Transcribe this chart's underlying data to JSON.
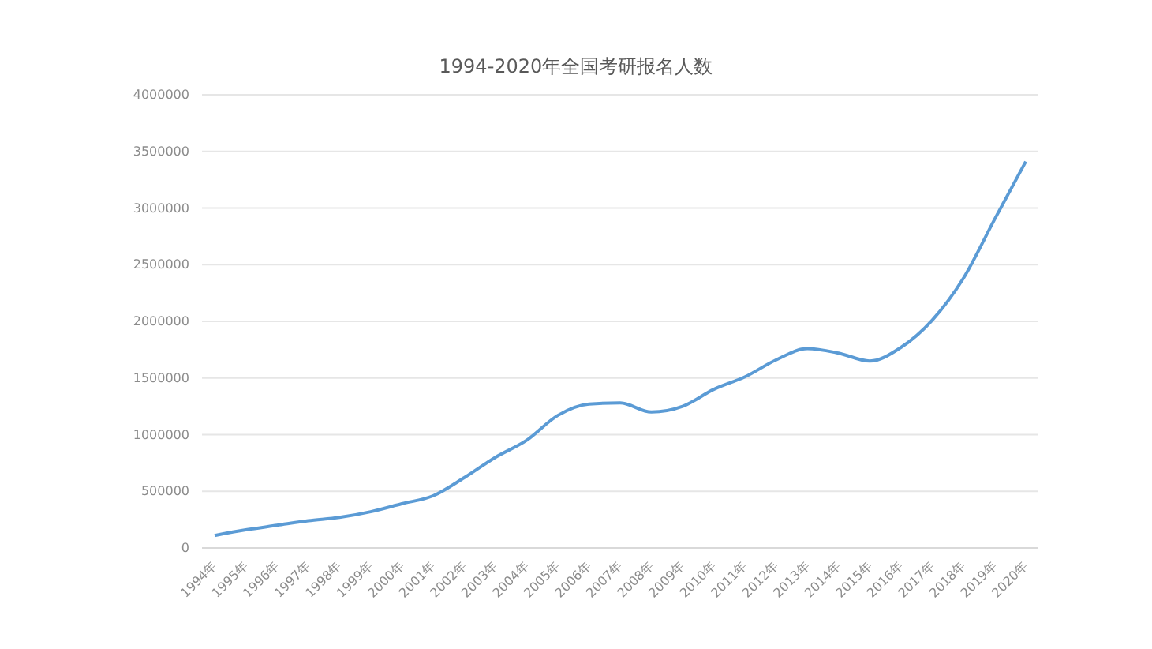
{
  "chart_data": {
    "type": "line",
    "title": "1994-2020年全国考研报名人数",
    "categories": [
      "1994年",
      "1995年",
      "1996年",
      "1997年",
      "1998年",
      "1999年",
      "2000年",
      "2001年",
      "2002年",
      "2003年",
      "2004年",
      "2005年",
      "2006年",
      "2007年",
      "2008年",
      "2009年",
      "2010年",
      "2011年",
      "2012年",
      "2013年",
      "2014年",
      "2015年",
      "2016年",
      "2017年",
      "2018年",
      "2019年",
      "2020年"
    ],
    "series": [
      {
        "color": "#5b9bd5",
        "values": [
          110000,
          160000,
          200000,
          240000,
          270000,
          320000,
          390000,
          460000,
          620000,
          800000,
          950000,
          1170000,
          1270000,
          1280000,
          1200000,
          1250000,
          1400000,
          1510000,
          1660000,
          1760000,
          1720000,
          1650000,
          1770000,
          2010000,
          2380000,
          2900000,
          3410000
        ]
      }
    ],
    "ylim": [
      0,
      4000000
    ],
    "yticks": [
      0,
      500000,
      1000000,
      1500000,
      2000000,
      2500000,
      3000000,
      3500000,
      4000000
    ],
    "grid": "y",
    "marker": "none",
    "line_style": "solid"
  }
}
